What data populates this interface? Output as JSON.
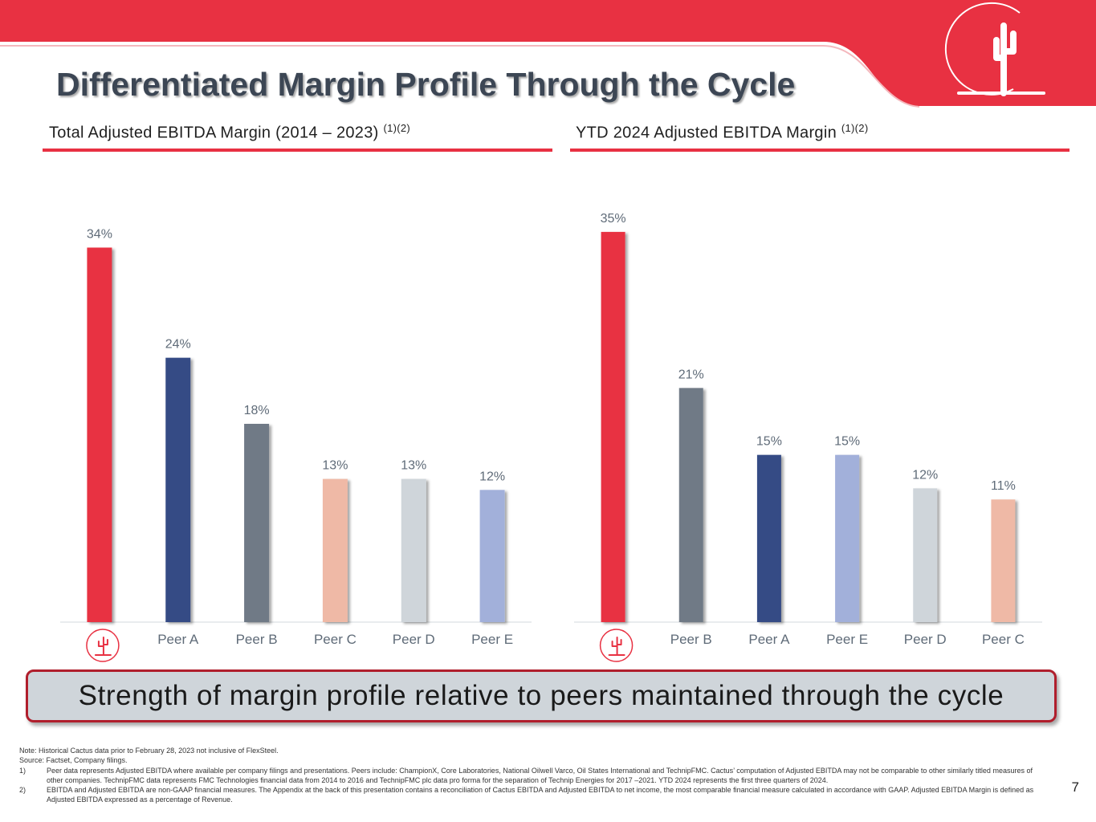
{
  "title": "Differentiated Margin Profile Through the Cycle",
  "colors": {
    "brand_red": "#e83142",
    "navy": "#364b85",
    "slate": "#6f7a86",
    "salmon": "#efb9a6",
    "light_gray": "#cfd5da",
    "periwinkle": "#a2b0da"
  },
  "left_panel": {
    "heading": "Total Adjusted EBITDA Margin (2014 – 2023)",
    "footnote_ref": "(1)(2)"
  },
  "right_panel": {
    "heading": "YTD 2024 Adjusted EBITDA Margin",
    "footnote_ref": "(1)(2)"
  },
  "chart_data": [
    {
      "type": "bar",
      "title": "Total Adjusted EBITDA Margin (2014 – 2023)",
      "categories": [
        "Cactus",
        "Peer A",
        "Peer B",
        "Peer C",
        "Peer D",
        "Peer E"
      ],
      "values": [
        34,
        24,
        18,
        13,
        13,
        12
      ],
      "labels": [
        "34%",
        "24%",
        "18%",
        "13%",
        "13%",
        "12%"
      ],
      "colors": [
        "#e83142",
        "#364b85",
        "#6f7a86",
        "#efb9a6",
        "#cfd5da",
        "#a2b0da"
      ],
      "first_category_icon": "cactus-logo-icon",
      "unit": "%",
      "ylim": [
        0,
        36
      ],
      "grid": false,
      "xlabel": "",
      "ylabel": ""
    },
    {
      "type": "bar",
      "title": "YTD 2024 Adjusted EBITDA Margin",
      "categories": [
        "Cactus",
        "Peer B",
        "Peer A",
        "Peer E",
        "Peer D",
        "Peer C"
      ],
      "values": [
        35,
        21,
        15,
        15,
        12,
        11
      ],
      "labels": [
        "35%",
        "21%",
        "15%",
        "15%",
        "12%",
        "11%"
      ],
      "colors": [
        "#e83142",
        "#6f7a86",
        "#364b85",
        "#a2b0da",
        "#cfd5da",
        "#efb9a6"
      ],
      "first_category_icon": "cactus-logo-icon",
      "unit": "%",
      "ylim": [
        0,
        36
      ],
      "grid": false,
      "xlabel": "",
      "ylabel": ""
    }
  ],
  "callout": "Strength of margin profile relative to peers maintained through the cycle",
  "notes": {
    "note": "Note: Historical Cactus data prior to February 28, 2023 not inclusive of FlexSteel.",
    "source": "Source: Factset, Company filings.",
    "footnotes": [
      {
        "num": "1)",
        "text": "Peer data represents Adjusted EBITDA where available per company filings and presentations. Peers include: ChampionX, Core Laboratories, National Oilwell Varco, Oil States International and TechnipFMC. Cactus’ computation of Adjusted EBITDA may not be comparable to other similarly titled measures of other companies. TechnipFMC data represents FMC Technologies financial data from 2014 to 2016 and TechnipFMC plc data pro forma for the separation of Technip Energies for 2017 –2021. YTD 2024 represents the first three quarters of 2024."
      },
      {
        "num": "2)",
        "text": "EBITDA and Adjusted EBITDA are non-GAAP financial measures. The Appendix at the back of this presentation contains a reconciliation of Cactus EBITDA and Adjusted EBITDA to net income, the most comparable financial measure calculated in accordance with GAAP. Adjusted EBITDA Margin is defined as Adjusted EBITDA expressed as a percentage of Revenue."
      }
    ]
  },
  "page_number": "7"
}
